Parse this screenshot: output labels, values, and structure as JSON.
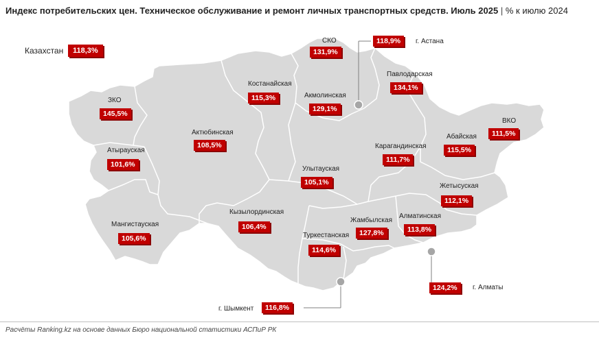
{
  "title": {
    "main": "Индекс потребительских цен. Техническое обслуживание и ремонт личных транспортных средств. Июль 2025",
    "separator": "|",
    "unit": "% к июлю 2024"
  },
  "country": {
    "name": "Казахстан",
    "value": "118,3%"
  },
  "regions": [
    {
      "id": "zko",
      "name": "ЗКО",
      "value": "145,5%"
    },
    {
      "id": "atyrau",
      "name": "Атырауская",
      "value": "101,6%"
    },
    {
      "id": "mangystau",
      "name": "Мангистауская",
      "value": "105,6%"
    },
    {
      "id": "aktobe",
      "name": "Актюбинская",
      "value": "108,5%"
    },
    {
      "id": "kostanay",
      "name": "Костанайская",
      "value": "115,3%"
    },
    {
      "id": "sko",
      "name": "СКО",
      "value": "131,9%"
    },
    {
      "id": "akmola",
      "name": "Акмолинская",
      "value": "129,1%"
    },
    {
      "id": "pavlodar",
      "name": "Павлодарская",
      "value": "134,1%"
    },
    {
      "id": "vko",
      "name": "ВКО",
      "value": "111,5%"
    },
    {
      "id": "abay",
      "name": "Абайская",
      "value": "115,5%"
    },
    {
      "id": "karaganda",
      "name": "Карагандинская",
      "value": "111,7%"
    },
    {
      "id": "ulytau",
      "name": "Улытауская",
      "value": "105,1%"
    },
    {
      "id": "zhetysu",
      "name": "Жетысуская",
      "value": "112,1%"
    },
    {
      "id": "kyzylorda",
      "name": "Кызылординская",
      "value": "106,4%"
    },
    {
      "id": "zhambyl",
      "name": "Жамбылская",
      "value": "127,8%"
    },
    {
      "id": "almaty_reg",
      "name": "Алматинская",
      "value": "113,8%"
    },
    {
      "id": "turkestan",
      "name": "Туркестанская",
      "value": "114,6%"
    }
  ],
  "cities": [
    {
      "id": "astana",
      "name": "г. Астана",
      "value": "118,9%"
    },
    {
      "id": "almaty",
      "name": "г. Алматы",
      "value": "124,2%"
    },
    {
      "id": "shymkent",
      "name": "г. Шымкент",
      "value": "116,8%"
    }
  ],
  "footer": "Расчёты Ranking.kz на основе данных Бюро национальной статистики АСПиР РК",
  "colors": {
    "map_fill": "#d9d9d9",
    "map_border": "#ffffff",
    "label_bg": "#c00000",
    "marker": "#a6a6a6"
  }
}
